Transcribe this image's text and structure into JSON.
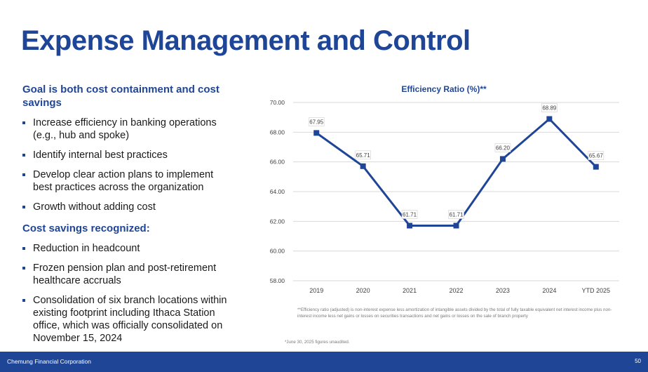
{
  "slide": {
    "title": "Expense Management and Control",
    "goal_heading": "Goal is both cost containment and cost savings",
    "goal_bullets": [
      "Increase efficiency in banking operations (e.g., hub and spoke)",
      "Identify internal best practices",
      "Develop clear action plans to implement best practices across the organization",
      "Growth without adding cost"
    ],
    "savings_heading": "Cost savings recognized:",
    "savings_bullets": [
      "Reduction in headcount",
      "Frozen pension plan and post-retirement healthcare accruals",
      "Consolidation of six branch locations within existing footprint including Ithaca Station office, which was officially consolidated on November 15, 2024"
    ],
    "footnote_efficiency": "**Efficiency ratio (adjusted) is non-interest expense less amortization of intangible assets divided by the total of fully taxable equivalent net interest income plus non-interest income less net gains or losses on securities transactions and net gains or losses on the sale of branch property",
    "footnote_unaudited": "*June 30, 2025 figures unaudited.",
    "footer_company": "Chemung Financial Corporation",
    "page_number": "50"
  },
  "chart_data": {
    "type": "line",
    "title": "Efficiency Ratio (%)**",
    "categories": [
      "2019",
      "2020",
      "2021",
      "2022",
      "2023",
      "2024",
      "YTD 2025"
    ],
    "values": [
      67.95,
      65.71,
      61.71,
      61.71,
      66.2,
      68.89,
      65.67
    ],
    "data_labels": [
      "67.95",
      "65.71",
      "61.71",
      "61.71",
      "66.20",
      "68.89",
      "65.67"
    ],
    "ylim": [
      58,
      70
    ],
    "yticks": [
      "58.00",
      "60.00",
      "62.00",
      "64.00",
      "66.00",
      "68.00",
      "70.00"
    ],
    "grid": true,
    "color": "#1f4596"
  }
}
